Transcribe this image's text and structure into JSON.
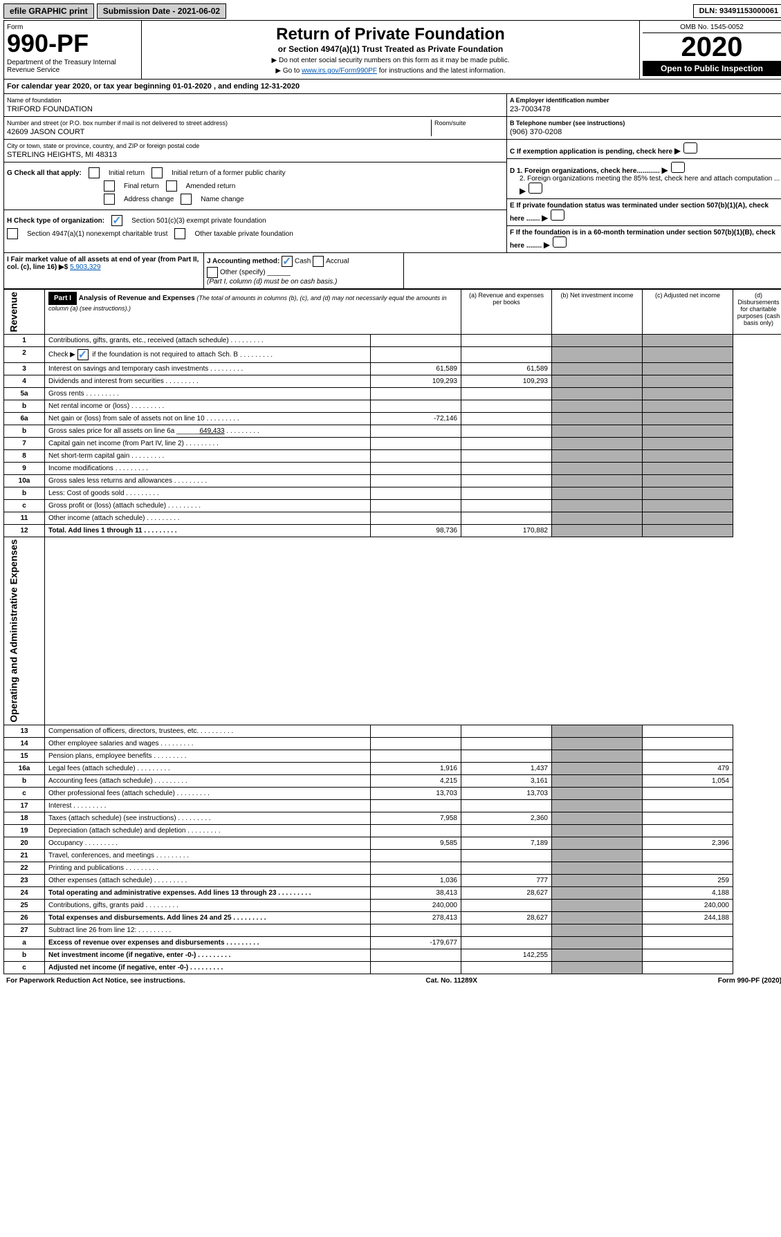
{
  "topbar": {
    "efile": "efile GRAPHIC print",
    "subdate_lbl": "Submission Date - 2021-06-02",
    "dln": "DLN: 93491153000061"
  },
  "hdr": {
    "form": "Form",
    "fno": "990-PF",
    "dept": "Department of the Treasury\nInternal Revenue Service",
    "title": "Return of Private Foundation",
    "sub": "or Section 4947(a)(1) Trust Treated as Private Foundation",
    "note1": "▶ Do not enter social security numbers on this form as it may be made public.",
    "note2": "▶ Go to ",
    "link": "www.irs.gov/Form990PF",
    "note3": " for instructions and the latest information.",
    "omb": "OMB No. 1545-0052",
    "year": "2020",
    "open": "Open to Public Inspection"
  },
  "calrow": "For calendar year 2020, or tax year beginning 01-01-2020                         , and ending 12-31-2020",
  "info": {
    "name_lbl": "Name of foundation",
    "name": "TRIFORD FOUNDATION",
    "addr_lbl": "Number and street (or P.O. box number if mail is not delivered to street address)",
    "room_lbl": "Room/suite",
    "addr": "42609 JASON COURT",
    "city_lbl": "City or town, state or province, country, and ZIP or foreign postal code",
    "city": "STERLING HEIGHTS, MI  48313",
    "ein_lbl": "A Employer identification number",
    "ein": "23-7003478",
    "tel_lbl": "B Telephone number (see instructions)",
    "tel": "(906) 370-0208",
    "c_lbl": "C If exemption application is pending, check here",
    "d1": "D 1. Foreign organizations, check here............",
    "d2": "2. Foreign organizations meeting the 85% test, check here and attach computation ...",
    "e": "E  If private foundation status was terminated under section 507(b)(1)(A), check here .......",
    "f": "F  If the foundation is in a 60-month termination under section 507(b)(1)(B), check here ........"
  },
  "g": {
    "lbl": "G Check all that apply:",
    "o1": "Initial return",
    "o2": "Initial return of a former public charity",
    "o3": "Final return",
    "o4": "Amended return",
    "o5": "Address change",
    "o6": "Name change"
  },
  "h": {
    "lbl": "H Check type of organization:",
    "o1": "Section 501(c)(3) exempt private foundation",
    "o2": "Section 4947(a)(1) nonexempt charitable trust",
    "o3": "Other taxable private foundation"
  },
  "i": {
    "lbl": "I Fair market value of all assets at end of year (from Part II, col. (c), line 16) ▶$",
    "val": "5,903,329"
  },
  "j": {
    "lbl": "J Accounting method:",
    "o1": "Cash",
    "o2": "Accrual",
    "o3": "Other (specify)",
    "note": "(Part I, column (d) must be on cash basis.)"
  },
  "part1": {
    "hdr": "Part I",
    "title": "Analysis of Revenue and Expenses",
    "sub": "(The total of amounts in columns (b), (c), and (d) may not necessarily equal the amounts in column (a) (see instructions).)",
    "ca": "(a)    Revenue and expenses per books",
    "cb": "(b)   Net investment income",
    "cc": "(c)   Adjusted net income",
    "cd": "(d)   Disbursements for charitable purposes (cash basis only)"
  },
  "rows": [
    {
      "n": "1",
      "d": "Contributions, gifts, grants, etc., received (attach schedule)"
    },
    {
      "n": "2",
      "d": "Check ▶",
      "d2": "if the foundation is not required to attach Sch. B",
      "ck": true
    },
    {
      "n": "3",
      "d": "Interest on savings and temporary cash investments",
      "a": "61,589",
      "b": "61,589"
    },
    {
      "n": "4",
      "d": "Dividends and interest from securities",
      "a": "109,293",
      "b": "109,293"
    },
    {
      "n": "5a",
      "d": "Gross rents"
    },
    {
      "n": "b",
      "d": "Net rental income or (loss)"
    },
    {
      "n": "6a",
      "d": "Net gain or (loss) from sale of assets not on line 10",
      "a": "-72,146"
    },
    {
      "n": "b",
      "d": "Gross sales price for all assets on line 6a",
      "v": "649,433"
    },
    {
      "n": "7",
      "d": "Capital gain net income (from Part IV, line 2)"
    },
    {
      "n": "8",
      "d": "Net short-term capital gain"
    },
    {
      "n": "9",
      "d": "Income modifications"
    },
    {
      "n": "10a",
      "d": "Gross sales less returns and allowances"
    },
    {
      "n": "b",
      "d": "Less: Cost of goods sold"
    },
    {
      "n": "c",
      "d": "Gross profit or (loss) (attach schedule)"
    },
    {
      "n": "11",
      "d": "Other income (attach schedule)"
    },
    {
      "n": "12",
      "d": "Total. Add lines 1 through 11",
      "a": "98,736",
      "b": "170,882",
      "bold": true
    }
  ],
  "exp": [
    {
      "n": "13",
      "d": "Compensation of officers, directors, trustees, etc."
    },
    {
      "n": "14",
      "d": "Other employee salaries and wages"
    },
    {
      "n": "15",
      "d": "Pension plans, employee benefits"
    },
    {
      "n": "16a",
      "d": "Legal fees (attach schedule)",
      "a": "1,916",
      "b": "1,437",
      "dd": "479"
    },
    {
      "n": "b",
      "d": "Accounting fees (attach schedule)",
      "a": "4,215",
      "b": "3,161",
      "dd": "1,054"
    },
    {
      "n": "c",
      "d": "Other professional fees (attach schedule)",
      "a": "13,703",
      "b": "13,703"
    },
    {
      "n": "17",
      "d": "Interest"
    },
    {
      "n": "18",
      "d": "Taxes (attach schedule) (see instructions)",
      "a": "7,958",
      "b": "2,360"
    },
    {
      "n": "19",
      "d": "Depreciation (attach schedule) and depletion"
    },
    {
      "n": "20",
      "d": "Occupancy",
      "a": "9,585",
      "b": "7,189",
      "dd": "2,396"
    },
    {
      "n": "21",
      "d": "Travel, conferences, and meetings"
    },
    {
      "n": "22",
      "d": "Printing and publications"
    },
    {
      "n": "23",
      "d": "Other expenses (attach schedule)",
      "a": "1,036",
      "b": "777",
      "dd": "259"
    },
    {
      "n": "24",
      "d": "Total operating and administrative expenses. Add lines 13 through 23",
      "a": "38,413",
      "b": "28,627",
      "dd": "4,188",
      "bold": true
    },
    {
      "n": "25",
      "d": "Contributions, gifts, grants paid",
      "a": "240,000",
      "dd": "240,000"
    },
    {
      "n": "26",
      "d": "Total expenses and disbursements. Add lines 24 and 25",
      "a": "278,413",
      "b": "28,627",
      "dd": "244,188",
      "bold": true
    },
    {
      "n": "27",
      "d": "Subtract line 26 from line 12:"
    },
    {
      "n": "a",
      "d": "Excess of revenue over expenses and disbursements",
      "a": "-179,677",
      "bold": true
    },
    {
      "n": "b",
      "d": "Net investment income (if negative, enter -0-)",
      "b": "142,255",
      "bold": true
    },
    {
      "n": "c",
      "d": "Adjusted net income (if negative, enter -0-)",
      "bold": true
    }
  ],
  "sections": {
    "rev": "Revenue",
    "exp": "Operating and Administrative Expenses"
  },
  "footer": {
    "l": "For Paperwork Reduction Act Notice, see instructions.",
    "c": "Cat. No. 11289X",
    "r": "Form 990-PF (2020)"
  }
}
